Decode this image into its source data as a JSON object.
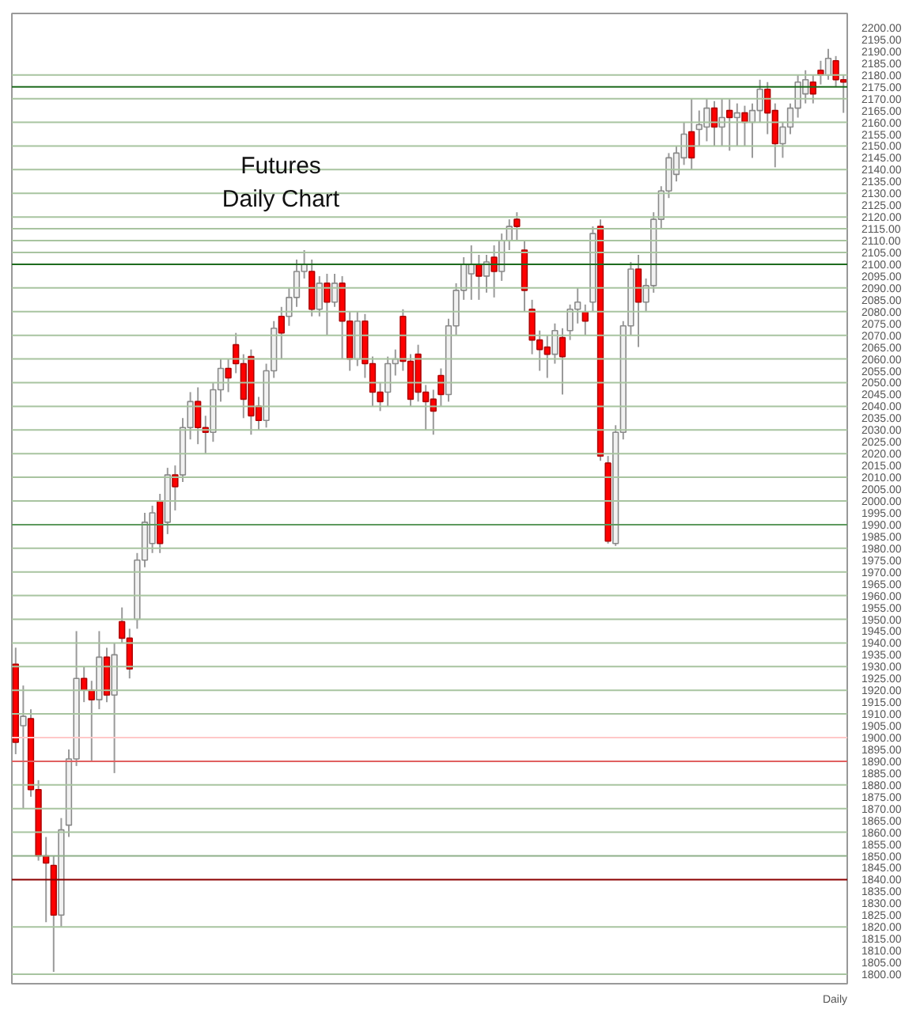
{
  "chart_data": {
    "type": "candlestick",
    "title": "Futures",
    "subtitle": "Daily Chart",
    "annotations": [
      "Daily"
    ],
    "ylim": [
      1796,
      2206
    ],
    "tick_labels": "y",
    "grid": false,
    "categories": [
      null,
      null,
      null,
      null,
      null,
      null,
      null,
      null,
      null,
      null,
      null,
      null,
      null,
      null,
      null,
      null,
      null,
      null,
      null,
      null,
      null,
      null,
      null,
      null,
      null,
      null,
      null,
      null,
      null,
      null,
      null,
      null,
      null,
      null,
      null,
      null,
      null,
      null,
      null,
      null,
      null,
      null,
      null,
      null,
      null,
      null,
      null,
      null,
      null,
      null,
      null,
      null,
      null,
      null,
      null,
      null,
      null,
      null,
      null,
      null,
      null,
      null,
      null,
      null,
      null,
      null,
      null,
      null,
      null,
      null,
      null,
      null,
      null,
      null,
      null,
      null,
      null,
      null,
      null,
      null,
      null,
      null,
      null,
      null,
      null,
      null,
      null,
      null,
      null,
      null,
      null,
      null,
      null,
      null,
      null,
      null,
      null,
      null,
      null,
      null,
      null,
      null,
      null,
      null,
      null,
      null,
      null,
      null,
      null,
      null
    ],
    "ohlc": [
      [
        1931,
        1938,
        1893,
        1898
      ],
      [
        1905,
        1922,
        1870,
        1909
      ],
      [
        1908,
        1912,
        1875,
        1878
      ],
      [
        1878,
        1882,
        1848,
        1850
      ],
      [
        1850,
        1858,
        1822,
        1847
      ],
      [
        1846,
        1850,
        1801,
        1825
      ],
      [
        1825,
        1866,
        1820,
        1861
      ],
      [
        1863,
        1895,
        1858,
        1891
      ],
      [
        1891,
        1945,
        1888,
        1925
      ],
      [
        1925,
        1930,
        1915,
        1920
      ],
      [
        1920,
        1924,
        1890,
        1916
      ],
      [
        1916,
        1945,
        1912,
        1934
      ],
      [
        1934,
        1938,
        1915,
        1918
      ],
      [
        1918,
        1940,
        1885,
        1935
      ],
      [
        1949,
        1955,
        1940,
        1942
      ],
      [
        1942,
        1946,
        1925,
        1929
      ],
      [
        1950,
        1978,
        1946,
        1975
      ],
      [
        1975,
        1995,
        1972,
        1991
      ],
      [
        1982,
        1998,
        1978,
        1995
      ],
      [
        2000,
        2003,
        1978,
        1982
      ],
      [
        1991,
        2014,
        1986,
        2011
      ],
      [
        2011,
        2015,
        1996,
        2006
      ],
      [
        2011,
        2035,
        2008,
        2031
      ],
      [
        2031,
        2046,
        2026,
        2042
      ],
      [
        2042,
        2048,
        2024,
        2031
      ],
      [
        2031,
        2036,
        2020,
        2029
      ],
      [
        2029,
        2050,
        2025,
        2047
      ],
      [
        2047,
        2060,
        2042,
        2056
      ],
      [
        2056,
        2060,
        2046,
        2052
      ],
      [
        2066,
        2071,
        2054,
        2058
      ],
      [
        2058,
        2062,
        2035,
        2043
      ],
      [
        2061,
        2064,
        2028,
        2036
      ],
      [
        2040,
        2044,
        2030,
        2034
      ],
      [
        2034,
        2058,
        2031,
        2055
      ],
      [
        2055,
        2076,
        2052,
        2073
      ],
      [
        2078,
        2082,
        2060,
        2071
      ],
      [
        2078,
        2090,
        2074,
        2086
      ],
      [
        2086,
        2102,
        2082,
        2097
      ],
      [
        2097,
        2106,
        2094,
        2100
      ],
      [
        2097,
        2102,
        2078,
        2081
      ],
      [
        2081,
        2095,
        2078,
        2092
      ],
      [
        2092,
        2096,
        2070,
        2084
      ],
      [
        2084,
        2096,
        2082,
        2092
      ],
      [
        2092,
        2095,
        2060,
        2076
      ],
      [
        2076,
        2080,
        2055,
        2060
      ],
      [
        2060,
        2080,
        2057,
        2076
      ],
      [
        2076,
        2079,
        2052,
        2058
      ],
      [
        2058,
        2061,
        2040,
        2046
      ],
      [
        2046,
        2050,
        2038,
        2042
      ],
      [
        2046,
        2061,
        2040,
        2058
      ],
      [
        2058,
        2064,
        2053,
        2060
      ],
      [
        2078,
        2081,
        2055,
        2059
      ],
      [
        2059,
        2062,
        2040,
        2043
      ],
      [
        2062,
        2066,
        2042,
        2046
      ],
      [
        2046,
        2049,
        2030,
        2042
      ],
      [
        2043,
        2047,
        2028,
        2038
      ],
      [
        2053,
        2056,
        2040,
        2045
      ],
      [
        2045,
        2077,
        2042,
        2074
      ],
      [
        2074,
        2092,
        2070,
        2089
      ],
      [
        2089,
        2103,
        2085,
        2100
      ],
      [
        2096,
        2108,
        2085,
        2100
      ],
      [
        2100,
        2104,
        2085,
        2095
      ],
      [
        2095,
        2104,
        2088,
        2101
      ],
      [
        2103,
        2108,
        2086,
        2097
      ],
      [
        2097,
        2113,
        2093,
        2110
      ],
      [
        2110,
        2119,
        2106,
        2116
      ],
      [
        2119,
        2122,
        2110,
        2116
      ],
      [
        2106,
        2110,
        2080,
        2089
      ],
      [
        2081,
        2085,
        2062,
        2068
      ],
      [
        2068,
        2072,
        2055,
        2064
      ],
      [
        2065,
        2070,
        2052,
        2062
      ],
      [
        2062,
        2075,
        2058,
        2072
      ],
      [
        2069,
        2073,
        2045,
        2061
      ],
      [
        2072,
        2083,
        2068,
        2081
      ],
      [
        2081,
        2090,
        2075,
        2084
      ],
      [
        2080,
        2083,
        2070,
        2076
      ],
      [
        2084,
        2116,
        2080,
        2113
      ],
      [
        2116,
        2119,
        2017,
        2019
      ],
      [
        2016,
        2019,
        1982,
        1983
      ],
      [
        1982,
        2032,
        1981,
        2029
      ],
      [
        2029,
        2076,
        2026,
        2074
      ],
      [
        2074,
        2101,
        2070,
        2098
      ],
      [
        2098,
        2104,
        2065,
        2084
      ],
      [
        2084,
        2094,
        2080,
        2091
      ],
      [
        2091,
        2122,
        2088,
        2119
      ],
      [
        2119,
        2133,
        2115,
        2131
      ],
      [
        2131,
        2147,
        2128,
        2145
      ],
      [
        2138,
        2150,
        2135,
        2147
      ],
      [
        2145,
        2160,
        2142,
        2155
      ],
      [
        2156,
        2170,
        2140,
        2145
      ],
      [
        2157,
        2165,
        2150,
        2159
      ],
      [
        2158,
        2170,
        2152,
        2166
      ],
      [
        2166,
        2169,
        2150,
        2158
      ],
      [
        2158,
        2170,
        2150,
        2162
      ],
      [
        2165,
        2170,
        2148,
        2162
      ],
      [
        2162,
        2168,
        2150,
        2164
      ],
      [
        2164,
        2167,
        2150,
        2160
      ],
      [
        2160,
        2168,
        2145,
        2165
      ],
      [
        2165,
        2178,
        2160,
        2174
      ],
      [
        2174,
        2177,
        2155,
        2164
      ],
      [
        2165,
        2168,
        2141,
        2151
      ],
      [
        2151,
        2160,
        2145,
        2158
      ],
      [
        2158,
        2168,
        2155,
        2166
      ],
      [
        2166,
        2180,
        2162,
        2177
      ],
      [
        2172,
        2182,
        2168,
        2178
      ],
      [
        2177,
        2180,
        2168,
        2172
      ],
      [
        2182,
        2186,
        2176,
        2180
      ],
      [
        2180,
        2191,
        2178,
        2187
      ],
      [
        2186,
        2188,
        2175,
        2178
      ],
      [
        2178,
        2180,
        2164,
        2177
      ]
    ],
    "ref_lines": [
      {
        "axis": "y",
        "value": 2180,
        "color": "#a8c4a0"
      },
      {
        "axis": "y",
        "value": 2175,
        "color": "#1e6b1e"
      },
      {
        "axis": "y",
        "value": 2170,
        "color": "#a8c4a0"
      },
      {
        "axis": "y",
        "value": 2160,
        "color": "#a8c4a0"
      },
      {
        "axis": "y",
        "value": 2150,
        "color": "#a8c4a0"
      },
      {
        "axis": "y",
        "value": 2140,
        "color": "#a8c4a0"
      },
      {
        "axis": "y",
        "value": 2130,
        "color": "#a8c4a0"
      },
      {
        "axis": "y",
        "value": 2120,
        "color": "#a8c4a0"
      },
      {
        "axis": "y",
        "value": 2115,
        "color": "#a8c4a0"
      },
      {
        "axis": "y",
        "value": 2110,
        "color": "#a8c4a0"
      },
      {
        "axis": "y",
        "value": 2105,
        "color": "#a8c4a0"
      },
      {
        "axis": "y",
        "value": 2100,
        "color": "#1e6b1e"
      },
      {
        "axis": "y",
        "value": 2090,
        "color": "#a8c4a0"
      },
      {
        "axis": "y",
        "value": 2080,
        "color": "#a8c4a0"
      },
      {
        "axis": "y",
        "value": 2070,
        "color": "#a8c4a0"
      },
      {
        "axis": "y",
        "value": 2060,
        "color": "#a8c4a0"
      },
      {
        "axis": "y",
        "value": 2050,
        "color": "#a8c4a0"
      },
      {
        "axis": "y",
        "value": 2040,
        "color": "#a8c4a0"
      },
      {
        "axis": "y",
        "value": 2030,
        "color": "#a8c4a0"
      },
      {
        "axis": "y",
        "value": 2020,
        "color": "#a8c4a0"
      },
      {
        "axis": "y",
        "value": 2010,
        "color": "#a8c4a0"
      },
      {
        "axis": "y",
        "value": 2000,
        "color": "#a8c4a0"
      },
      {
        "axis": "y",
        "value": 1990,
        "color": "#5e9a5e"
      },
      {
        "axis": "y",
        "value": 1980,
        "color": "#a8c4a0"
      },
      {
        "axis": "y",
        "value": 1970,
        "color": "#a8c4a0"
      },
      {
        "axis": "y",
        "value": 1960,
        "color": "#a8c4a0"
      },
      {
        "axis": "y",
        "value": 1950,
        "color": "#a8c4a0"
      },
      {
        "axis": "y",
        "value": 1940,
        "color": "#a8c4a0"
      },
      {
        "axis": "y",
        "value": 1930,
        "color": "#a8c4a0"
      },
      {
        "axis": "y",
        "value": 1920,
        "color": "#a8c4a0"
      },
      {
        "axis": "y",
        "value": 1910,
        "color": "#a8c4a0"
      },
      {
        "axis": "y",
        "value": 1900,
        "color": "#ffc8c8"
      },
      {
        "axis": "y",
        "value": 1890,
        "color": "#e06060"
      },
      {
        "axis": "y",
        "value": 1880,
        "color": "#a8c4a0"
      },
      {
        "axis": "y",
        "value": 1870,
        "color": "#a8c4a0"
      },
      {
        "axis": "y",
        "value": 1860,
        "color": "#a8c4a0"
      },
      {
        "axis": "y",
        "value": 1850,
        "color": "#8fb08a"
      },
      {
        "axis": "y",
        "value": 1840,
        "color": "#8b0000"
      },
      {
        "axis": "y",
        "value": 1820,
        "color": "#a8c4a0"
      },
      {
        "axis": "y",
        "value": 1800,
        "color": "#a8c4a0"
      }
    ],
    "yticks": [
      {
        "value": 1800,
        "label": "1800.00"
      },
      {
        "value": 1805,
        "label": "1805.00"
      },
      {
        "value": 1810,
        "label": "1810.00"
      },
      {
        "value": 1815,
        "label": "1815.00"
      },
      {
        "value": 1820,
        "label": "1820.00"
      },
      {
        "value": 1825,
        "label": "1825.00"
      },
      {
        "value": 1830,
        "label": "1830.00"
      },
      {
        "value": 1835,
        "label": "1835.00"
      },
      {
        "value": 1840,
        "label": "1840.00"
      },
      {
        "value": 1845,
        "label": "1845.00"
      },
      {
        "value": 1850,
        "label": "1850.00"
      },
      {
        "value": 1855,
        "label": "1855.00"
      },
      {
        "value": 1860,
        "label": "1860.00"
      },
      {
        "value": 1865,
        "label": "1865.00"
      },
      {
        "value": 1870,
        "label": "1870.00"
      },
      {
        "value": 1875,
        "label": "1875.00"
      },
      {
        "value": 1880,
        "label": "1880.00"
      },
      {
        "value": 1885,
        "label": "1885.00"
      },
      {
        "value": 1890,
        "label": "1890.00"
      },
      {
        "value": 1895,
        "label": "1895.00"
      },
      {
        "value": 1900,
        "label": "1900.00"
      },
      {
        "value": 1905,
        "label": "1905.00"
      },
      {
        "value": 1910,
        "label": "1910.00"
      },
      {
        "value": 1915,
        "label": "1915.00"
      },
      {
        "value": 1920,
        "label": "1920.00"
      },
      {
        "value": 1925,
        "label": "1925.00"
      },
      {
        "value": 1930,
        "label": "1930.00"
      },
      {
        "value": 1935,
        "label": "1935.00"
      },
      {
        "value": 1940,
        "label": "1940.00"
      },
      {
        "value": 1945,
        "label": "1945.00"
      },
      {
        "value": 1950,
        "label": "1950.00"
      },
      {
        "value": 1955,
        "label": "1955.00"
      },
      {
        "value": 1960,
        "label": "1960.00"
      },
      {
        "value": 1965,
        "label": "1965.00"
      },
      {
        "value": 1970,
        "label": "1970.00"
      },
      {
        "value": 1975,
        "label": "1975.00"
      },
      {
        "value": 1980,
        "label": "1980.00"
      },
      {
        "value": 1985,
        "label": "1985.00"
      },
      {
        "value": 1990,
        "label": "1990.00"
      },
      {
        "value": 1995,
        "label": "1995.00"
      },
      {
        "value": 2000,
        "label": "2000.00"
      },
      {
        "value": 2005,
        "label": "2005.00"
      },
      {
        "value": 2010,
        "label": "2010.00"
      },
      {
        "value": 2015,
        "label": "2015.00"
      },
      {
        "value": 2020,
        "label": "2020.00"
      },
      {
        "value": 2025,
        "label": "2025.00"
      },
      {
        "value": 2030,
        "label": "2030.00"
      },
      {
        "value": 2035,
        "label": "2035.00"
      },
      {
        "value": 2040,
        "label": "2040.00"
      },
      {
        "value": 2045,
        "label": "2045.00"
      },
      {
        "value": 2050,
        "label": "2050.00"
      },
      {
        "value": 2055,
        "label": "2055.00"
      },
      {
        "value": 2060,
        "label": "2060.00"
      },
      {
        "value": 2065,
        "label": "2065.00"
      },
      {
        "value": 2070,
        "label": "2070.00"
      },
      {
        "value": 2075,
        "label": "2075.00"
      },
      {
        "value": 2080,
        "label": "2080.00"
      },
      {
        "value": 2085,
        "label": "2085.00"
      },
      {
        "value": 2090,
        "label": "2090.00"
      },
      {
        "value": 2095,
        "label": "2095.00"
      },
      {
        "value": 2100,
        "label": "2100.00"
      },
      {
        "value": 2105,
        "label": "2105.00"
      },
      {
        "value": 2110,
        "label": "2110.00"
      },
      {
        "value": 2115,
        "label": "2115.00"
      },
      {
        "value": 2120,
        "label": "2120.00"
      },
      {
        "value": 2125,
        "label": "2125.00"
      },
      {
        "value": 2130,
        "label": "2130.00"
      },
      {
        "value": 2135,
        "label": "2135.00"
      },
      {
        "value": 2140,
        "label": "2140.00"
      },
      {
        "value": 2145,
        "label": "2145.00"
      },
      {
        "value": 2150,
        "label": "2150.00"
      },
      {
        "value": 2155,
        "label": "2155.00"
      },
      {
        "value": 2160,
        "label": "2160.00"
      },
      {
        "value": 2165,
        "label": "2165.00"
      },
      {
        "value": 2170,
        "label": "2170.00"
      },
      {
        "value": 2175,
        "label": "2175.00"
      },
      {
        "value": 2180,
        "label": "2180.00"
      },
      {
        "value": 2185,
        "label": "2185.00"
      },
      {
        "value": 2190,
        "label": "2190.00"
      },
      {
        "value": 2195,
        "label": "2195.00"
      },
      {
        "value": 2200,
        "label": "2200.00"
      }
    ]
  }
}
